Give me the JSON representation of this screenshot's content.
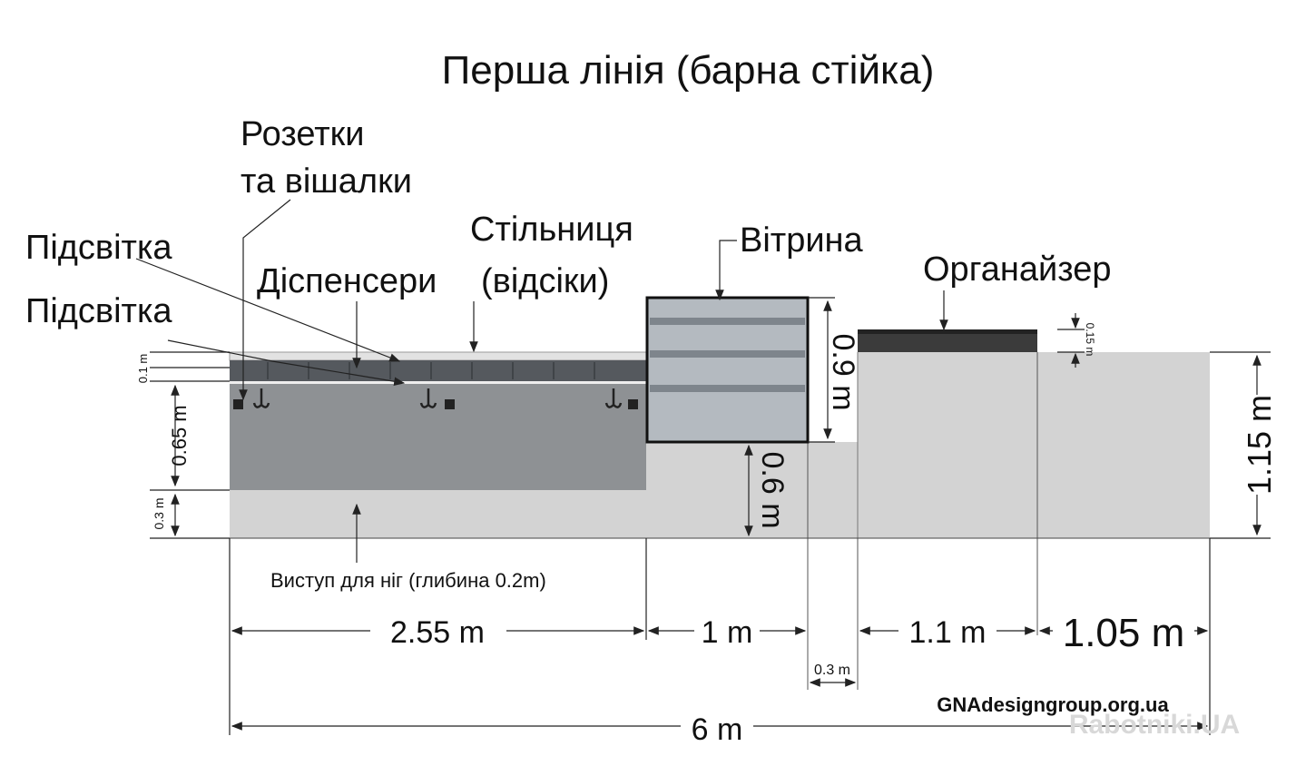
{
  "title": "Перша лінія (барна стійка)",
  "labels": {
    "sockets": [
      "Розетки",
      "та вішалки"
    ],
    "lighting_top": "Підсвітка",
    "lighting_bottom": "Підсвітка",
    "dispensers": "Діспенсери",
    "countertop": [
      "Стільниця",
      "(відсіки)"
    ],
    "showcase": "Вітрина",
    "organizer": "Органайзер",
    "footrest": "Виступ для ніг (глибина 0.2m)"
  },
  "dimensions": {
    "top_strip": "0.1 m",
    "concrete": "0.65 m",
    "footrest": "0.3 m",
    "showcase_height": "0.9 m",
    "showcase_base": "0.6 m",
    "organizer_height": "0.15 m",
    "total_height": "1.15 m",
    "counter_width": "2.55 m",
    "showcase_width": "1 m",
    "gap": "0.3 m",
    "block_a": "1.1 m",
    "block_b": "1.05 m",
    "total_width": "6 m"
  },
  "site": "GNAdesigngroup.org.ua",
  "watermark": "Rabotniki.UA"
}
